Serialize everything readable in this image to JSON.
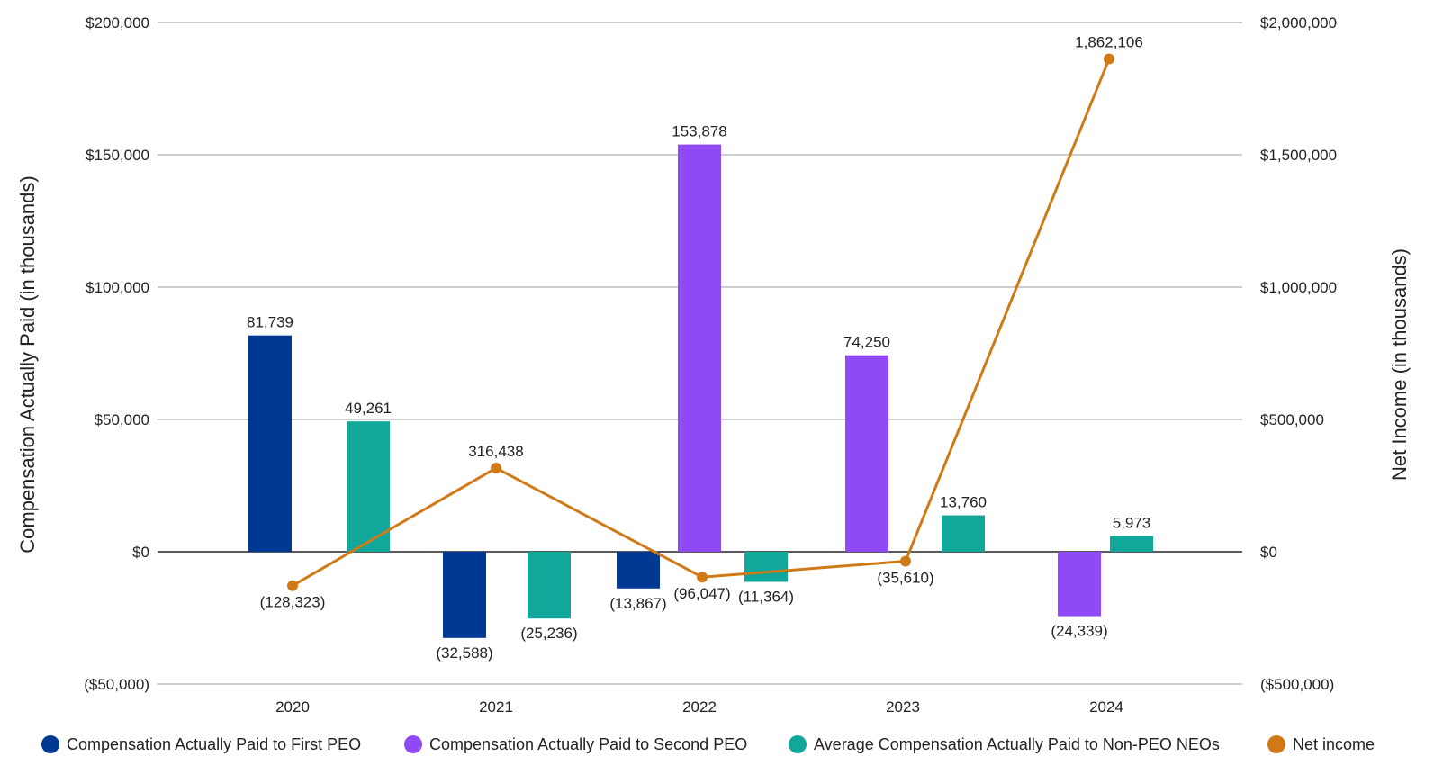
{
  "chart_data": {
    "type": "bar",
    "categories": [
      "2020",
      "2021",
      "2022",
      "2023",
      "2024"
    ],
    "ylabel": "Compensation Actually Paid (in thousands)",
    "y2label": "Net Income (in thousands)",
    "ylim": [
      -50000,
      200000
    ],
    "y2lim": [
      -500000,
      2000000
    ],
    "yticks": [
      -50000,
      0,
      50000,
      100000,
      150000,
      200000
    ],
    "ytick_labels": [
      "($50,000)",
      "$0",
      "$50,000",
      "$100,000",
      "$150,000",
      "$200,000"
    ],
    "y2ticks": [
      -500000,
      0,
      500000,
      1000000,
      1500000,
      2000000
    ],
    "y2tick_labels": [
      "($500,000)",
      "$0",
      "$500,000",
      "$1,000,000",
      "$1,500,000",
      "$2,000,000"
    ],
    "grid": true,
    "legend_position": "bottom",
    "series": [
      {
        "name": "Compensation Actually Paid to First PEO",
        "type": "bar",
        "axis": "left",
        "color": "#003893",
        "values": [
          81739,
          -32588,
          -13867,
          null,
          null
        ],
        "labels": [
          "81,739",
          "(32,588)",
          "(13,867)",
          null,
          null
        ]
      },
      {
        "name": "Compensation Actually Paid to Second PEO",
        "type": "bar",
        "axis": "left",
        "color": "#8f4af5",
        "values": [
          null,
          null,
          153878,
          74250,
          -24339
        ],
        "labels": [
          null,
          null,
          "153,878",
          "74,250",
          "(24,339)"
        ]
      },
      {
        "name": "Average Compensation Actually Paid to Non-PEO NEOs",
        "type": "bar",
        "axis": "left",
        "color": "#11a89b",
        "values": [
          49261,
          -25236,
          -11364,
          13760,
          5973
        ],
        "labels": [
          "49,261",
          "(25,236)",
          "(11,364)",
          "13,760",
          "5,973"
        ]
      },
      {
        "name": "Net income",
        "type": "line",
        "axis": "right",
        "color": "#d07a17",
        "values": [
          -128323,
          316438,
          -96047,
          -35610,
          1862106
        ],
        "labels": [
          "(128,323)",
          "316,438",
          "(96,047)",
          "(35,610)",
          "1,862,106"
        ]
      }
    ]
  }
}
